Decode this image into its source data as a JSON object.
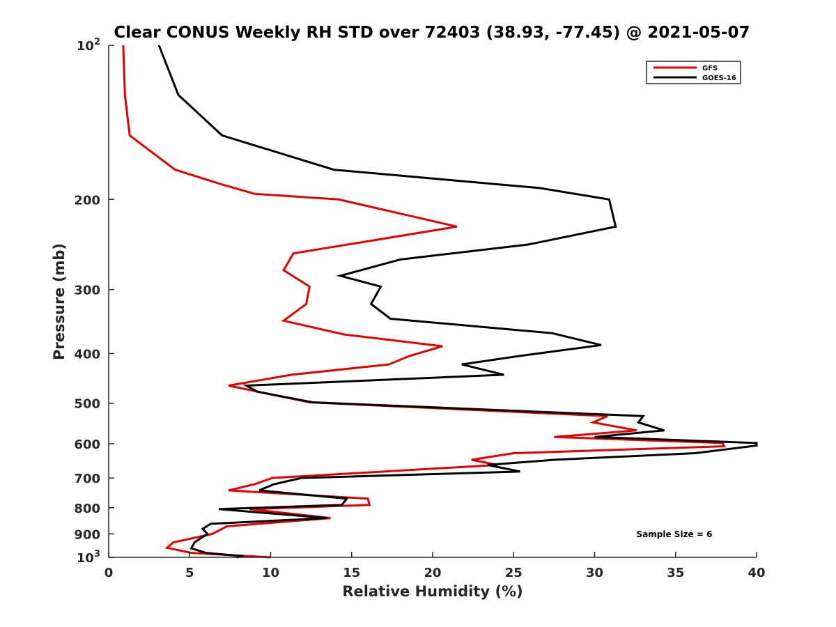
{
  "chart_data": {
    "type": "line",
    "title": "Clear CONUS Weekly RH STD over 72403 (38.93, -77.45) @ 2021-05-07",
    "xlabel": "Relative Humidity (%)",
    "ylabel": "Pressure (mb)",
    "xlim": [
      0,
      40
    ],
    "ylim": [
      100,
      1000
    ],
    "y_scale": "log",
    "y_reversed": true,
    "grid": false,
    "legend_position": "top-right",
    "x_ticks": [
      0,
      5,
      10,
      15,
      20,
      25,
      30,
      35,
      40
    ],
    "x_tick_labels": [
      "0",
      "5",
      "10",
      "15",
      "20",
      "25",
      "30",
      "35",
      "40"
    ],
    "y_ticks": [
      {
        "value": 100,
        "base": "10",
        "sup": "2",
        "label": ""
      },
      {
        "value": 200,
        "base": "",
        "sup": "",
        "label": "200"
      },
      {
        "value": 300,
        "base": "",
        "sup": "",
        "label": "300"
      },
      {
        "value": 400,
        "base": "",
        "sup": "",
        "label": "400"
      },
      {
        "value": 500,
        "base": "",
        "sup": "",
        "label": "500"
      },
      {
        "value": 600,
        "base": "",
        "sup": "",
        "label": "600"
      },
      {
        "value": 700,
        "base": "",
        "sup": "",
        "label": "700"
      },
      {
        "value": 800,
        "base": "",
        "sup": "",
        "label": "800"
      },
      {
        "value": 900,
        "base": "",
        "sup": "",
        "label": "900"
      },
      {
        "value": 1000,
        "base": "10",
        "sup": "3",
        "label": ""
      }
    ],
    "series": [
      {
        "name": "GFS",
        "color": "#e00000",
        "points": [
          [
            0.9,
            100
          ],
          [
            1.0,
            125
          ],
          [
            1.3,
            150
          ],
          [
            4.1,
            175
          ],
          [
            7.0,
            187
          ],
          [
            9.0,
            195
          ],
          [
            14.2,
            200
          ],
          [
            21.5,
            226
          ],
          [
            11.4,
            255
          ],
          [
            10.8,
            275
          ],
          [
            12.4,
            296
          ],
          [
            12.2,
            320
          ],
          [
            10.8,
            345
          ],
          [
            14.5,
            367
          ],
          [
            20.6,
            387
          ],
          [
            18.5,
            405
          ],
          [
            17.3,
            420
          ],
          [
            11.3,
            440
          ],
          [
            7.4,
            462
          ],
          [
            12.4,
            498
          ],
          [
            30.8,
            530
          ],
          [
            29.9,
            545
          ],
          [
            32.6,
            565
          ],
          [
            27.5,
            582
          ],
          [
            37.9,
            598
          ],
          [
            38.0,
            607
          ],
          [
            25.0,
            626
          ],
          [
            22.4,
            645
          ],
          [
            24.0,
            660
          ],
          [
            10.1,
            700
          ],
          [
            9.0,
            720
          ],
          [
            7.4,
            740
          ],
          [
            16.0,
            768
          ],
          [
            16.1,
            790
          ],
          [
            8.7,
            805
          ],
          [
            13.7,
            838
          ],
          [
            7.3,
            870
          ],
          [
            6.4,
            900
          ],
          [
            4.0,
            935
          ],
          [
            3.6,
            958
          ],
          [
            5.1,
            980
          ],
          [
            10.0,
            1000
          ]
        ]
      },
      {
        "name": "GOES-16",
        "color": "#000000",
        "points": [
          [
            3.1,
            100
          ],
          [
            4.3,
            125
          ],
          [
            7.0,
            150
          ],
          [
            13.9,
            175
          ],
          [
            26.6,
            190
          ],
          [
            30.9,
            200
          ],
          [
            31.3,
            226
          ],
          [
            25.9,
            245
          ],
          [
            18.0,
            262
          ],
          [
            14.3,
            282
          ],
          [
            16.8,
            296
          ],
          [
            16.2,
            320
          ],
          [
            17.4,
            342
          ],
          [
            27.4,
            365
          ],
          [
            30.4,
            385
          ],
          [
            25.2,
            405
          ],
          [
            21.8,
            420
          ],
          [
            24.4,
            440
          ],
          [
            8.5,
            462
          ],
          [
            9.2,
            475
          ],
          [
            12.6,
            498
          ],
          [
            33.0,
            530
          ],
          [
            32.7,
            545
          ],
          [
            34.3,
            565
          ],
          [
            30.0,
            582
          ],
          [
            40.0,
            598
          ],
          [
            40.0,
            605
          ],
          [
            36.2,
            626
          ],
          [
            27.5,
            645
          ],
          [
            23.4,
            660
          ],
          [
            25.4,
            680
          ],
          [
            11.9,
            700
          ],
          [
            10.2,
            720
          ],
          [
            9.3,
            740
          ],
          [
            14.7,
            768
          ],
          [
            14.4,
            790
          ],
          [
            6.8,
            805
          ],
          [
            13.5,
            838
          ],
          [
            6.3,
            860
          ],
          [
            5.8,
            880
          ],
          [
            6.1,
            900
          ],
          [
            5.3,
            935
          ],
          [
            5.1,
            960
          ],
          [
            6.0,
            980
          ],
          [
            8.3,
            995
          ],
          [
            7.9,
            1000
          ]
        ]
      }
    ],
    "annotation": "Sample Size = 6"
  }
}
